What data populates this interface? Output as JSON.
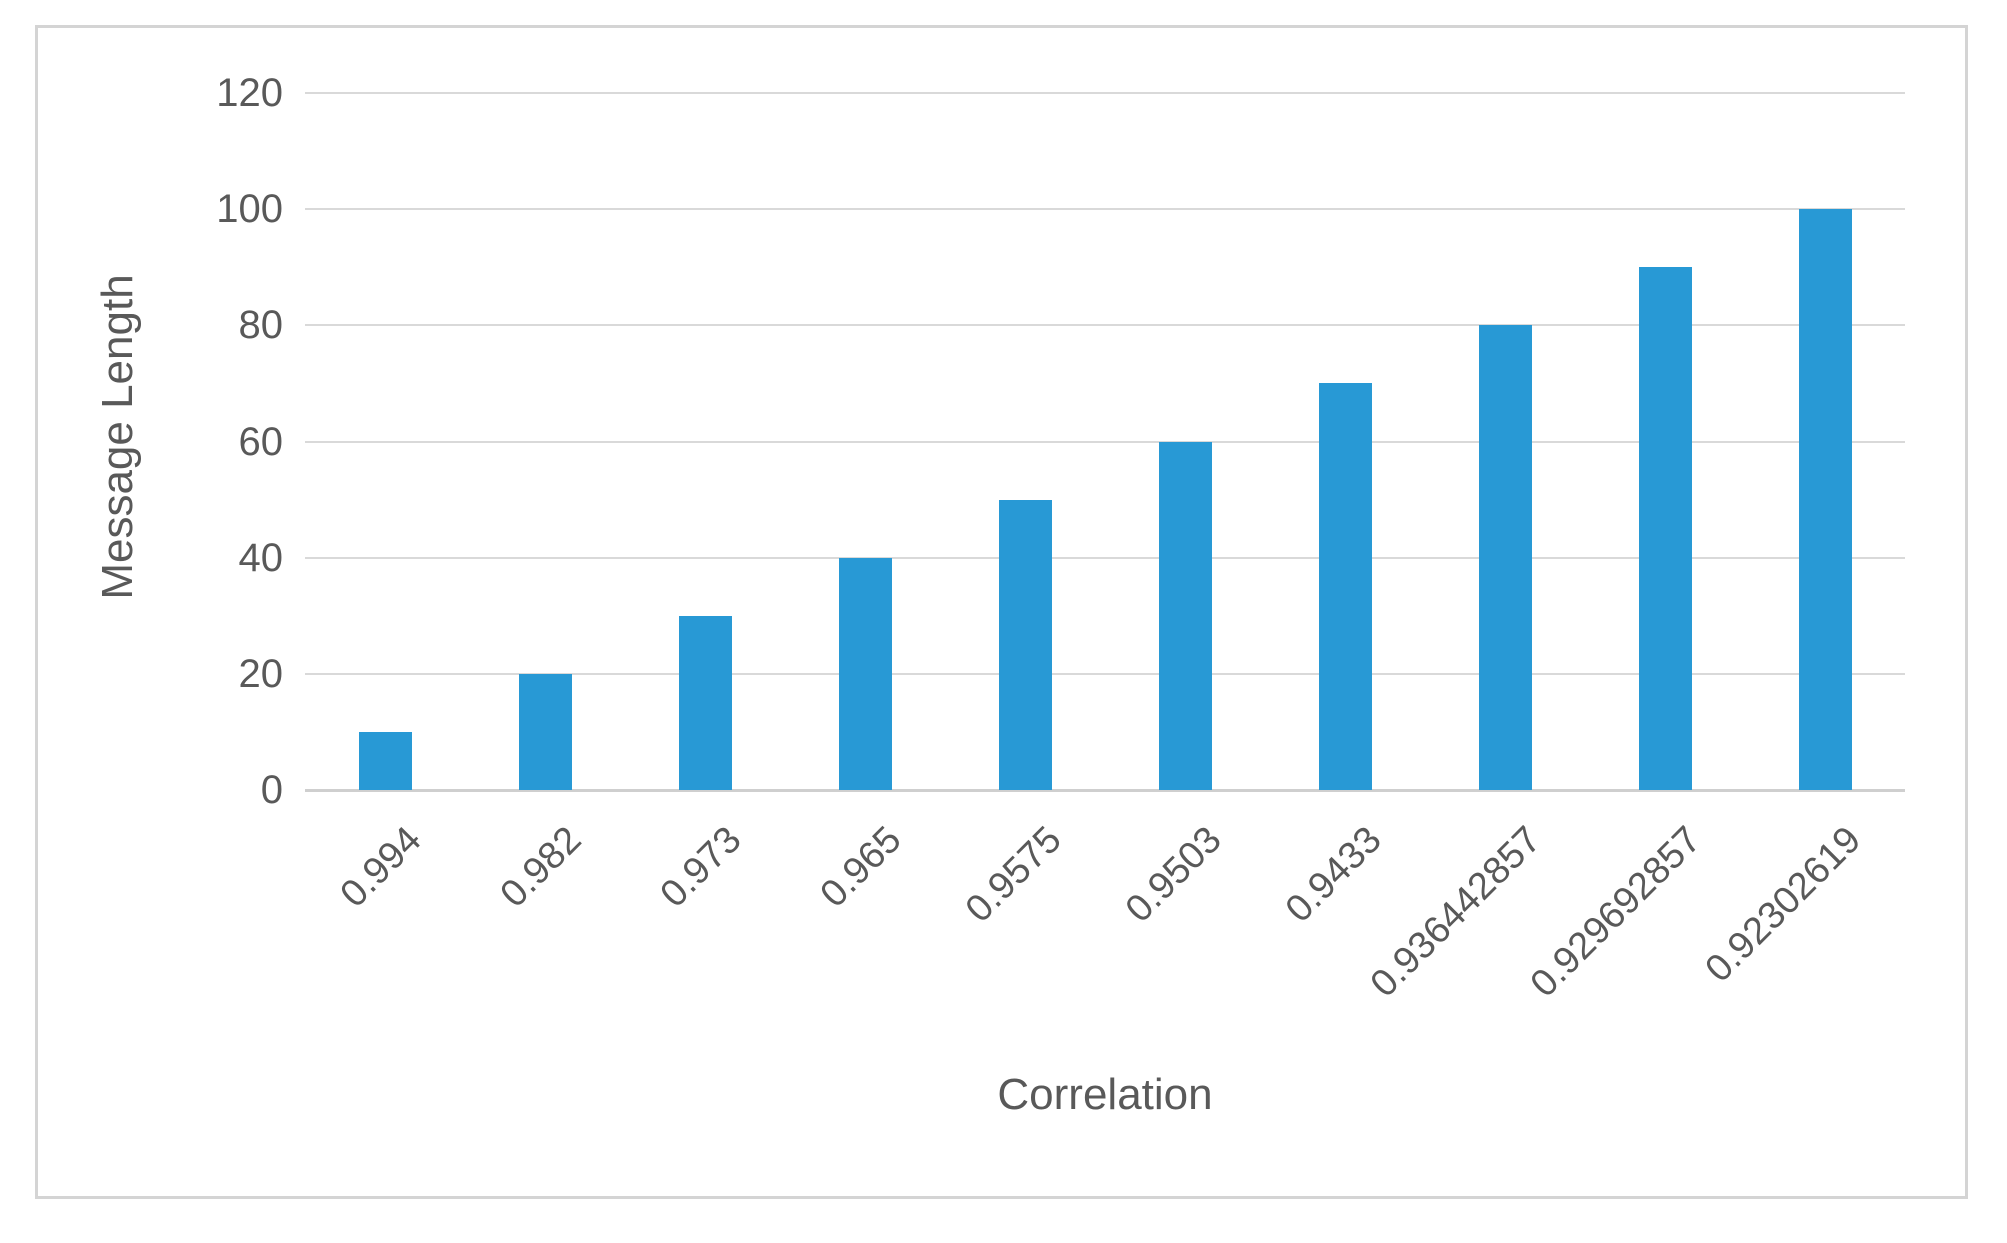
{
  "chart_data": {
    "type": "bar",
    "title": "",
    "categories": [
      "0.994",
      "0.982",
      "0.973",
      "0.965",
      "0.9575",
      "0.9503",
      "0.9433",
      "0.936442857",
      "0.929692857",
      "0.92302619"
    ],
    "values": [
      10,
      20,
      30,
      40,
      50,
      60,
      70,
      80,
      90,
      100
    ],
    "xlabel": "Correlation",
    "ylabel": "Message Length",
    "yticks": [
      0,
      20,
      40,
      60,
      80,
      100,
      120
    ],
    "ylim": [
      0,
      120
    ],
    "grid": "horizontal",
    "legend_position": "none",
    "bar_color": "#2899d5",
    "gridline_color": "#d9d9d9",
    "axis_text_color": "#595959",
    "frame_border_color": "#d4d4d4"
  }
}
